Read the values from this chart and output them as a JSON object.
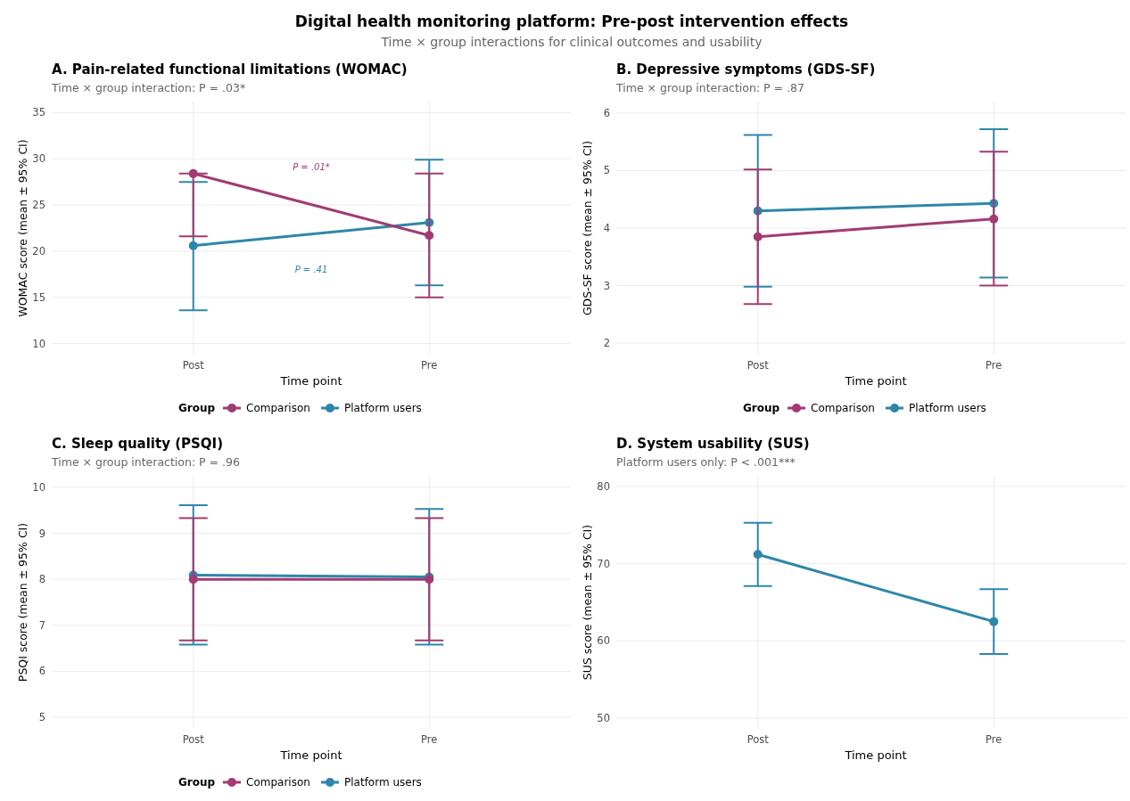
{
  "chart_data": [
    {
      "type": "line",
      "title": "A. Pain-related functional limitations (WOMAC)",
      "subtitle": "Time × group interaction: P = .03*",
      "xlabel": "Time point",
      "ylabel": "WOMAC score (mean ± 95% CI)",
      "legend_title": "Group",
      "categories": [
        "Post",
        "Pre"
      ],
      "series": [
        {
          "name": "Comparison",
          "color": "#a23b72",
          "values": [
            28.4,
            21.7
          ],
          "errors": [
            [
              21.6,
              28.4
            ],
            [
              15.0,
              28.4
            ]
          ]
        },
        {
          "name": "Platform users",
          "color": "#2e86ab",
          "values": [
            20.6,
            23.1
          ],
          "errors": [
            [
              13.6,
              27.5
            ],
            [
              16.3,
              29.9
            ]
          ]
        }
      ],
      "ylim": [
        8.8,
        36.2
      ],
      "yticks": [
        10,
        15,
        20,
        25,
        30,
        35
      ],
      "grid": true,
      "legend": "bottom",
      "marker": "circle",
      "line_style": "solid",
      "annotations": [
        "Digital health monitoring platform: Pre-post intervention effects",
        "Time × group interactions for clinical outcomes and usability",
        "P = .01*",
        "P = .41"
      ]
    },
    {
      "type": "line",
      "title": "B. Depressive symptoms (GDS-SF)",
      "subtitle": "Time × group interaction: P = .87",
      "xlabel": "Time point",
      "ylabel": "GDS-SF score (mean ± 95% CI)",
      "legend_title": "Group",
      "categories": [
        "Post",
        "Pre"
      ],
      "series": [
        {
          "name": "Comparison",
          "color": "#a23b72",
          "values": [
            3.85,
            4.16
          ],
          "errors": [
            [
              2.68,
              5.02
            ],
            [
              3.0,
              5.33
            ]
          ]
        },
        {
          "name": "Platform users",
          "color": "#2e86ab",
          "values": [
            4.3,
            4.43
          ],
          "errors": [
            [
              2.98,
              5.62
            ],
            [
              3.14,
              5.72
            ]
          ]
        }
      ],
      "ylim": [
        1.8,
        6.2
      ],
      "yticks": [
        2,
        3,
        4,
        5,
        6
      ],
      "grid": true,
      "legend": "bottom",
      "marker": "circle",
      "line_style": "solid"
    },
    {
      "type": "line",
      "title": "C. Sleep quality (PSQI)",
      "subtitle": "Time × group interaction: P = .96",
      "xlabel": "Time point",
      "ylabel": "PSQI score (mean ± 95% CI)",
      "legend_title": "Group",
      "categories": [
        "Post",
        "Pre"
      ],
      "series": [
        {
          "name": "Comparison",
          "color": "#a23b72",
          "values": [
            8.0,
            8.0
          ],
          "errors": [
            [
              6.67,
              9.33
            ],
            [
              6.67,
              9.33
            ]
          ]
        },
        {
          "name": "Platform users",
          "color": "#2e86ab",
          "values": [
            8.09,
            8.05
          ],
          "errors": [
            [
              6.58,
              9.61
            ],
            [
              6.58,
              9.53
            ]
          ]
        }
      ],
      "ylim": [
        4.75,
        10.25
      ],
      "yticks": [
        5,
        6,
        7,
        8,
        9,
        10
      ],
      "grid": true,
      "legend": "bottom",
      "marker": "circle",
      "line_style": "solid"
    },
    {
      "type": "line",
      "title": "D. System usability (SUS)",
      "subtitle": "Platform users only: P < .001***",
      "xlabel": "Time point",
      "ylabel": "SUS score (mean ± 95% CI)",
      "categories": [
        "Post",
        "Pre"
      ],
      "series": [
        {
          "color": "#2e86ab",
          "values": [
            71.2,
            62.5
          ],
          "errors": [
            [
              67.1,
              75.3
            ],
            [
              58.3,
              66.7
            ]
          ]
        }
      ],
      "ylim": [
        48.6,
        81.4
      ],
      "yticks": [
        50,
        60,
        70,
        80
      ],
      "grid": true,
      "marker": "circle",
      "line_style": "solid"
    }
  ]
}
